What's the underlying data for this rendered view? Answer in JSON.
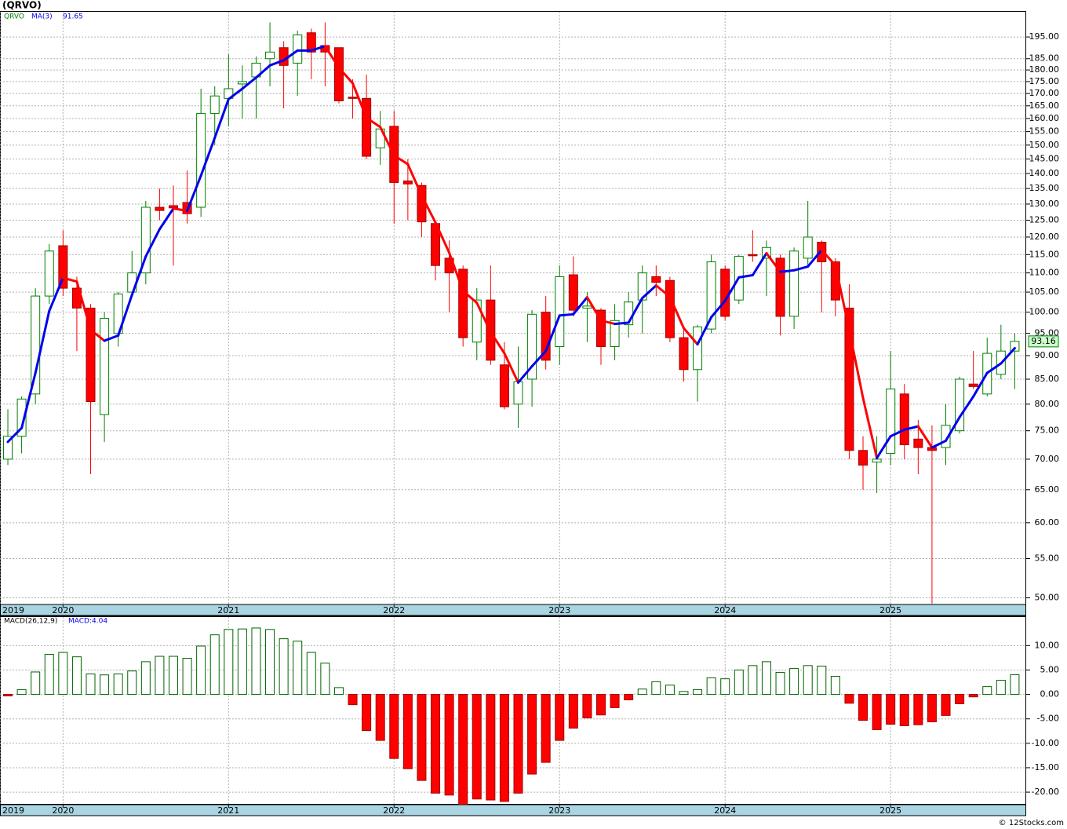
{
  "chart_data": [
    {
      "type": "candlestick",
      "title": "(QRVO)",
      "symbol": "QRVO",
      "open": [
        70,
        74,
        82,
        104,
        117.5,
        106,
        101,
        78,
        95,
        105,
        110,
        129,
        129.5,
        130.5,
        129,
        162,
        168,
        174,
        177,
        185,
        190,
        183,
        197,
        191,
        190,
        168.5,
        168,
        149,
        157,
        137.5,
        136,
        124,
        114,
        111,
        93,
        103,
        88,
        80,
        85,
        100,
        92,
        109.5,
        101,
        100.5,
        92,
        97,
        103,
        109,
        108,
        94,
        87,
        96,
        111,
        103,
        115,
        114,
        114,
        99,
        114,
        118.5,
        113,
        101,
        71.5,
        69.5,
        71,
        82,
        73.5,
        72,
        72,
        75,
        84,
        82,
        86,
        91
      ],
      "high": [
        79,
        81.5,
        106,
        118,
        122,
        109,
        102,
        100,
        105,
        116,
        131,
        135,
        136,
        141,
        172,
        173,
        187,
        182,
        186,
        202,
        193,
        198,
        199,
        202,
        190,
        176,
        178,
        163,
        163,
        145,
        137,
        125,
        119,
        112,
        106,
        112,
        93,
        92,
        100.5,
        104,
        112,
        114.5,
        105,
        101,
        102,
        105,
        112,
        112,
        109,
        96,
        97,
        115,
        112,
        115,
        122,
        119,
        115,
        117,
        131,
        119,
        114,
        107,
        74,
        74,
        91,
        84,
        77,
        76,
        80,
        85.5,
        91,
        94,
        97,
        95
      ],
      "low": [
        69,
        71,
        80,
        102,
        104,
        91,
        67.5,
        73,
        92,
        104,
        107,
        125,
        112,
        124,
        126,
        150,
        157,
        160,
        160,
        173,
        164,
        169,
        176,
        173,
        166,
        160,
        145,
        143,
        124,
        125,
        120,
        108,
        100,
        92,
        89,
        88,
        79,
        75.5,
        79.5,
        87,
        88,
        99,
        93,
        88,
        89,
        94,
        95,
        104,
        93,
        84.5,
        80.5,
        95,
        98,
        102,
        113,
        104,
        94.5,
        96,
        112,
        100,
        99,
        70,
        65,
        64.5,
        69,
        70,
        67.5,
        49.3,
        69,
        74.5,
        83,
        81.5,
        85,
        83
      ],
      "close": [
        74,
        81,
        104,
        116,
        106,
        101,
        80.5,
        98.5,
        104.5,
        110,
        129,
        128,
        128.8,
        127,
        162,
        169,
        172,
        175,
        183,
        188,
        182,
        196,
        188,
        188,
        167,
        168,
        146,
        156,
        137,
        136.5,
        124.5,
        112,
        110,
        94,
        103,
        89,
        79.5,
        84.5,
        99.5,
        89,
        109,
        100.5,
        101.5,
        92,
        98,
        102.5,
        110,
        107.5,
        94,
        87,
        96.5,
        113,
        99,
        114.5,
        114.8,
        117,
        99,
        116,
        120,
        113,
        103,
        71.5,
        69,
        70,
        83,
        72.5,
        72,
        71.5,
        76,
        85,
        83.5,
        90.5,
        91,
        93.16
      ],
      "ma": {
        "name": "MA(3)",
        "values": [
          73,
          75.5,
          86.3,
          100.3,
          108.7,
          107.7,
          95.8,
          93.3,
          94.5,
          104.3,
          114.5,
          122.3,
          128.6,
          127.9,
          139.3,
          152.7,
          167.7,
          172,
          176.7,
          182,
          184.3,
          188.7,
          188.7,
          190.7,
          181,
          174.3,
          160.3,
          156.7,
          146.3,
          143.2,
          132.7,
          124.3,
          115.5,
          105.3,
          102.3,
          95.3,
          90.5,
          84.3,
          87.7,
          91,
          99.2,
          99.5,
          103.7,
          98,
          97.2,
          97.5,
          103.5,
          106.7,
          103.8,
          96.2,
          92.5,
          98.8,
          102.8,
          108.8,
          109.4,
          115.4,
          110.3,
          110.7,
          111.7,
          116.3,
          112,
          95.8,
          81.2,
          70.2,
          74,
          75.2,
          75.8,
          72,
          73.2,
          77.5,
          81.5,
          86.3,
          88.3,
          91.65
        ]
      },
      "up_color": "#008000",
      "down_color": "#ff0000",
      "ma_up_color": "#0000ee",
      "ma_down_color": "#ff0000",
      "log_scale": true,
      "grid": true,
      "ylim": [
        49.2,
        207.3
      ],
      "yticks": [
        {
          "value": 50,
          "label": "50.00"
        },
        {
          "value": 55,
          "label": "55.00"
        },
        {
          "value": 60,
          "label": "60.00"
        },
        {
          "value": 65,
          "label": "65.00"
        },
        {
          "value": 70,
          "label": "70.00"
        },
        {
          "value": 75,
          "label": "75.00"
        },
        {
          "value": 80,
          "label": "80.00"
        },
        {
          "value": 85,
          "label": "85.00"
        },
        {
          "value": 90,
          "label": "90.00"
        },
        {
          "value": 95,
          "label": "95.00"
        },
        {
          "value": 100,
          "label": "100.00"
        },
        {
          "value": 105,
          "label": "105.00"
        },
        {
          "value": 110,
          "label": "110.00"
        },
        {
          "value": 115,
          "label": "115.00"
        },
        {
          "value": 120,
          "label": "120.00"
        },
        {
          "value": 125,
          "label": "125.00"
        },
        {
          "value": 130,
          "label": "130.00"
        },
        {
          "value": 135,
          "label": "135.00"
        },
        {
          "value": 140,
          "label": "140.00"
        },
        {
          "value": 145,
          "label": "145.00"
        },
        {
          "value": 150,
          "label": "150.00"
        },
        {
          "value": 155,
          "label": "155.00"
        },
        {
          "value": 160,
          "label": "160.00"
        },
        {
          "value": 165,
          "label": "165.00"
        },
        {
          "value": 170,
          "label": "170.00"
        },
        {
          "value": 175,
          "label": "175.00"
        },
        {
          "value": 180,
          "label": "180.00"
        },
        {
          "value": 185,
          "label": "185.00"
        },
        {
          "value": 195,
          "label": "195.00"
        }
      ],
      "xlim": [
        -0.57,
        73.83
      ],
      "xticks": [
        {
          "value": -0.57,
          "label": "2019"
        },
        {
          "value": 4,
          "label": "2020"
        },
        {
          "value": 16,
          "label": "2021"
        },
        {
          "value": 28,
          "label": "2022"
        },
        {
          "value": 40,
          "label": "2023"
        },
        {
          "value": 52,
          "label": "2024"
        },
        {
          "value": 64,
          "label": "2025"
        }
      ]
    },
    {
      "type": "bar",
      "name": "MACD(26,12,9)",
      "current_label": "MACD:4.04",
      "values": [
        -0.3,
        1.0,
        4.6,
        8.2,
        8.6,
        7.7,
        4.2,
        4.0,
        4.2,
        4.8,
        6.7,
        7.8,
        7.8,
        7.4,
        9.9,
        12.2,
        13.3,
        13.4,
        13.6,
        13.3,
        11.4,
        10.9,
        8.6,
        6.4,
        1.4,
        -2.1,
        -7.4,
        -9.4,
        -13.1,
        -15.2,
        -17.6,
        -20.2,
        -20.6,
        -22.5,
        -21.4,
        -21.6,
        -21.9,
        -20.2,
        -16.3,
        -13.9,
        -9.4,
        -6.9,
        -4.8,
        -4.2,
        -2.7,
        -1.1,
        1.1,
        2.6,
        1.9,
        0.6,
        1.0,
        3.4,
        3.2,
        5.0,
        5.9,
        6.7,
        4.5,
        5.3,
        5.9,
        5.8,
        3.7,
        -1.8,
        -5.3,
        -7.2,
        -6.1,
        -6.4,
        -6.2,
        -5.6,
        -4.3,
        -1.9,
        -0.5,
        1.6,
        2.9,
        4.04
      ],
      "up_color": "#006400",
      "down_color": "#ff0000",
      "grid": true,
      "ylim": [
        -22.56,
        15.84
      ],
      "yticks": [
        {
          "value": 10,
          "label": "10.00"
        },
        {
          "value": 5,
          "label": "5.00"
        },
        {
          "value": 0,
          "label": "0.00"
        },
        {
          "value": -5,
          "label": "-5.00"
        },
        {
          "value": -10,
          "label": "-10.00"
        },
        {
          "value": -15,
          "label": "-15.00"
        },
        {
          "value": -20,
          "label": "-20.00"
        }
      ],
      "xlim": [
        -0.57,
        73.83
      ],
      "xticks": [
        {
          "value": -0.57,
          "label": "2019"
        },
        {
          "value": 4,
          "label": "2020"
        },
        {
          "value": 16,
          "label": "2021"
        },
        {
          "value": 28,
          "label": "2022"
        },
        {
          "value": 40,
          "label": "2023"
        },
        {
          "value": 52,
          "label": "2024"
        },
        {
          "value": 64,
          "label": "2025"
        }
      ]
    }
  ],
  "footer": "© 12Stocks.com"
}
